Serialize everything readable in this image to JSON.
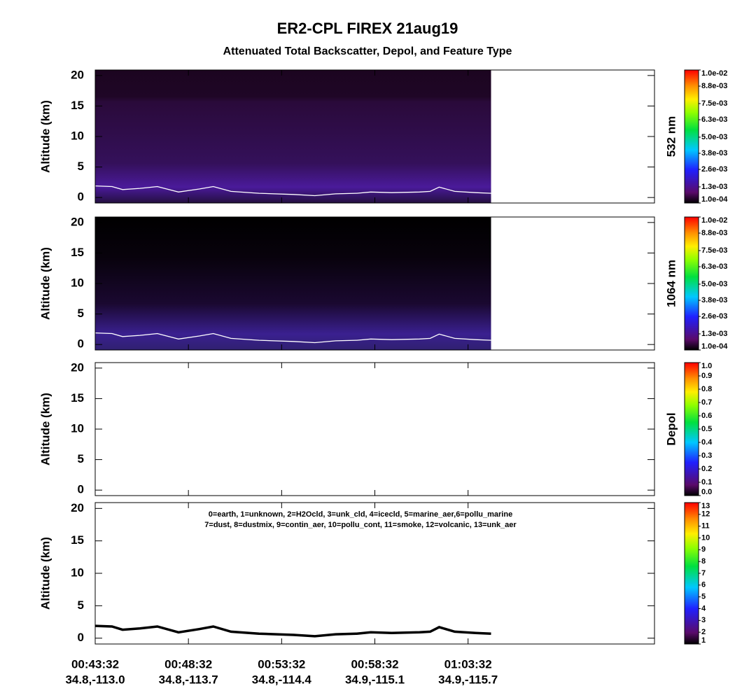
{
  "title": "ER2-CPL  FIREX  21aug19",
  "subtitle": "Attenuated Total Backscatter, Depol, and Feature Type",
  "x_axis": {
    "xlim": [
      "00:43:32",
      "01:13:32"
    ],
    "xticks": [
      "00:43:32",
      "00:48:32",
      "00:53:32",
      "00:58:32",
      "01:03:32"
    ],
    "xtick_sublabels": [
      "34.8,-113.0",
      "34.8,-113.7",
      "34.8,-114.4",
      "34.9,-115.1",
      "34.9,-115.7"
    ]
  },
  "surface_line": {
    "x": [
      "00:43:32",
      "00:44:26",
      "00:45:00",
      "00:45:56",
      "00:46:52",
      "00:48:00",
      "00:49:07",
      "00:49:52",
      "00:50:49",
      "00:52:19",
      "00:54:11",
      "00:55:19",
      "00:56:26",
      "00:57:34",
      "00:58:19",
      "00:59:26",
      "01:00:56",
      "01:01:30",
      "01:01:59",
      "01:02:49",
      "01:03:56",
      "01:04:46"
    ],
    "values": [
      1.9,
      1.8,
      1.3,
      1.5,
      1.8,
      0.9,
      1.4,
      1.8,
      1.0,
      0.7,
      0.5,
      0.3,
      0.6,
      0.7,
      0.9,
      0.8,
      0.9,
      1.0,
      1.7,
      1.0,
      0.8,
      0.7
    ]
  },
  "chart_data": [
    {
      "type": "backscatter",
      "ylabel": "Altitude (km)",
      "colorbar_label": "532 nm",
      "ylim": [
        -0.9,
        20.9
      ],
      "yticks": [
        0,
        5,
        10,
        15,
        20
      ],
      "clim": [
        0.0001,
        0.01
      ],
      "cticks": [
        {
          "value": 0.0001,
          "label": "1.0e-04"
        },
        {
          "value": 0.0013,
          "label": "1.3e-03"
        },
        {
          "value": 0.0026,
          "label": "2.6e-03"
        },
        {
          "value": 0.0038,
          "label": "3.8e-03"
        },
        {
          "value": 0.005,
          "label": "5.0e-03"
        },
        {
          "value": 0.0063,
          "label": "6.3e-03"
        },
        {
          "value": 0.0075,
          "label": "7.5e-03"
        },
        {
          "value": 0.0088,
          "label": "8.8e-03"
        },
        {
          "value": 0.01,
          "label": "1.0e-02"
        }
      ]
    },
    {
      "type": "backscatter",
      "ylabel": "Altitude (km)",
      "colorbar_label": "1064 nm",
      "ylim": [
        -0.9,
        20.9
      ],
      "yticks": [
        0,
        5,
        10,
        15,
        20
      ],
      "clim": [
        0.0001,
        0.01
      ],
      "cticks": [
        {
          "value": 0.0001,
          "label": "1.0e-04"
        },
        {
          "value": 0.0013,
          "label": "1.3e-03"
        },
        {
          "value": 0.0026,
          "label": "2.6e-03"
        },
        {
          "value": 0.0038,
          "label": "3.8e-03"
        },
        {
          "value": 0.005,
          "label": "5.0e-03"
        },
        {
          "value": 0.0063,
          "label": "6.3e-03"
        },
        {
          "value": 0.0075,
          "label": "7.5e-03"
        },
        {
          "value": 0.0088,
          "label": "8.8e-03"
        },
        {
          "value": 0.01,
          "label": "1.0e-02"
        }
      ]
    },
    {
      "type": "depol",
      "ylabel": "Altitude (km)",
      "colorbar_label": "Depol",
      "ylim": [
        -0.9,
        20.9
      ],
      "yticks": [
        0,
        5,
        10,
        15,
        20
      ],
      "clim": [
        0,
        1
      ],
      "cticks": [
        {
          "value": 0,
          "label": "0.0"
        },
        {
          "value": 0.1,
          "label": "0.1"
        },
        {
          "value": 0.2,
          "label": "0.2"
        },
        {
          "value": 0.3,
          "label": "0.3"
        },
        {
          "value": 0.4,
          "label": "0.4"
        },
        {
          "value": 0.5,
          "label": "0.5"
        },
        {
          "value": 0.6,
          "label": "0.6"
        },
        {
          "value": 0.7,
          "label": "0.7"
        },
        {
          "value": 0.8,
          "label": "0.8"
        },
        {
          "value": 0.9,
          "label": "0.9"
        },
        {
          "value": 1,
          "label": "1.0"
        }
      ]
    },
    {
      "type": "featuretype",
      "ylabel": "Altitude (km)",
      "annotations": [
        "0=earth, 1=unknown, 2=H2Ocld, 3=unk_cld, 4=icecld, 5=marine_aer,6=pollu_marine",
        "7=dust, 8=dustmix, 9=contin_aer, 10=pollu_cont, 11=smoke, 12=volcanic, 13=unk_aer"
      ],
      "ylim": [
        -0.9,
        20.9
      ],
      "yticks": [
        0,
        5,
        10,
        15,
        20
      ],
      "clim": [
        1,
        13
      ],
      "cticks": [
        1,
        2,
        3,
        4,
        5,
        6,
        7,
        8,
        9,
        10,
        11,
        12,
        13
      ]
    }
  ]
}
